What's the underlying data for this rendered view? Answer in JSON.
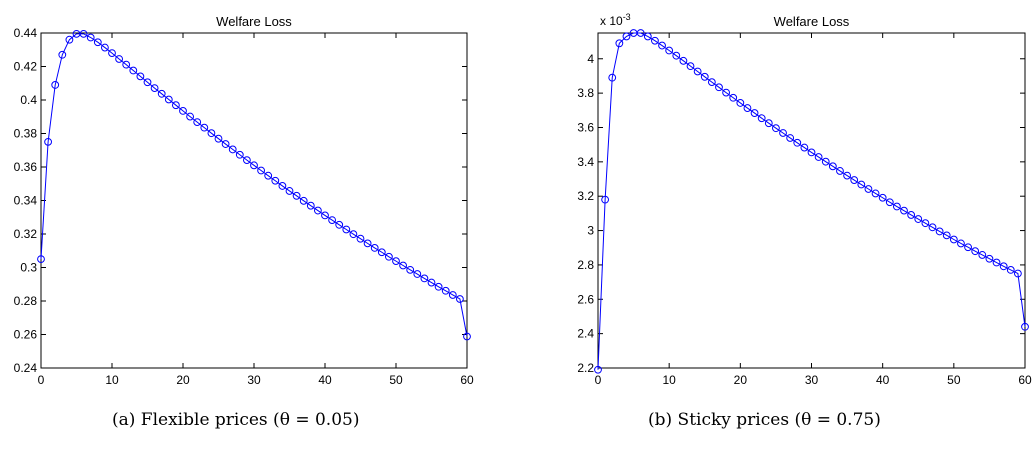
{
  "chart_data": [
    {
      "type": "line",
      "title": "Welfare Loss",
      "caption": "(a) Flexible prices (θ = 0.05)",
      "xlabel": "",
      "ylabel": "",
      "xlim": [
        0,
        60
      ],
      "ylim": [
        0.24,
        0.44
      ],
      "xticks": [
        "0",
        "10",
        "20",
        "30",
        "40",
        "50",
        "60"
      ],
      "yticks": [
        "0.24",
        "0.26",
        "0.28",
        "0.3",
        "0.32",
        "0.34",
        "0.36",
        "0.38",
        "0.4",
        "0.42",
        "0.44"
      ],
      "exponent_label": "",
      "marker": "circle",
      "line_color": "#0000ff",
      "grid": false,
      "series": [
        {
          "x": [
            0,
            1,
            2,
            3,
            4,
            5,
            6,
            7,
            8,
            9,
            10,
            11,
            12,
            13,
            14,
            15,
            16,
            17,
            18,
            19,
            20,
            21,
            22,
            23,
            24,
            25,
            26,
            27,
            28,
            29,
            30,
            31,
            32,
            33,
            34,
            35,
            36,
            37,
            38,
            39,
            40,
            41,
            42,
            43,
            44,
            45,
            46,
            47,
            48,
            49,
            50,
            51,
            52,
            53,
            54,
            55,
            56,
            57,
            58,
            59,
            60
          ],
          "y": [
            0.305,
            0.375,
            0.409,
            0.427,
            0.436,
            0.4395,
            0.4395,
            0.4373,
            0.4345,
            0.4313,
            0.428,
            0.4245,
            0.4211,
            0.4176,
            0.4141,
            0.4106,
            0.4071,
            0.4037,
            0.4003,
            0.3969,
            0.3935,
            0.3901,
            0.3868,
            0.3835,
            0.3802,
            0.3769,
            0.3737,
            0.3705,
            0.3673,
            0.3641,
            0.361,
            0.3579,
            0.3548,
            0.3518,
            0.3487,
            0.3457,
            0.3428,
            0.3398,
            0.3369,
            0.334,
            0.3311,
            0.3283,
            0.3255,
            0.3227,
            0.3199,
            0.3172,
            0.3144,
            0.3117,
            0.3091,
            0.3064,
            0.3038,
            0.3012,
            0.2986,
            0.2961,
            0.2935,
            0.291,
            0.2885,
            0.2861,
            0.2836,
            0.2812,
            0.2588
          ]
        }
      ]
    },
    {
      "type": "line",
      "title": "Welfare Loss",
      "caption": "(b) Sticky prices (θ = 0.75)",
      "xlabel": "",
      "ylabel": "",
      "xlim": [
        0,
        60
      ],
      "ylim": [
        2.2,
        4.15
      ],
      "xticks": [
        "0",
        "10",
        "20",
        "30",
        "40",
        "50",
        "60"
      ],
      "yticks": [
        "2.2",
        "2.4",
        "2.6",
        "2.8",
        "3",
        "3.2",
        "3.4",
        "3.6",
        "3.8",
        "4"
      ],
      "exponent_label": "x 10",
      "exponent_sup": "-3",
      "marker": "circle",
      "line_color": "#0000ff",
      "grid": false,
      "series": [
        {
          "x": [
            0,
            1,
            2,
            3,
            4,
            5,
            6,
            7,
            8,
            9,
            10,
            11,
            12,
            13,
            14,
            15,
            16,
            17,
            18,
            19,
            20,
            21,
            22,
            23,
            24,
            25,
            26,
            27,
            28,
            29,
            30,
            31,
            32,
            33,
            34,
            35,
            36,
            37,
            38,
            39,
            40,
            41,
            42,
            43,
            44,
            45,
            46,
            47,
            48,
            49,
            50,
            51,
            52,
            53,
            54,
            55,
            56,
            57,
            58,
            59,
            60
          ],
          "y": [
            2.19,
            3.18,
            3.89,
            4.09,
            4.13,
            4.15,
            4.15,
            4.13,
            4.105,
            4.077,
            4.048,
            4.018,
            3.988,
            3.957,
            3.926,
            3.895,
            3.864,
            3.834,
            3.803,
            3.773,
            3.743,
            3.713,
            3.684,
            3.654,
            3.625,
            3.596,
            3.568,
            3.539,
            3.511,
            3.483,
            3.455,
            3.428,
            3.401,
            3.374,
            3.347,
            3.32,
            3.294,
            3.268,
            3.242,
            3.216,
            3.191,
            3.165,
            3.14,
            3.116,
            3.091,
            3.067,
            3.043,
            3.019,
            2.995,
            2.972,
            2.948,
            2.925,
            2.903,
            2.88,
            2.858,
            2.836,
            2.814,
            2.792,
            2.771,
            2.75,
            2.44
          ]
        }
      ]
    }
  ]
}
